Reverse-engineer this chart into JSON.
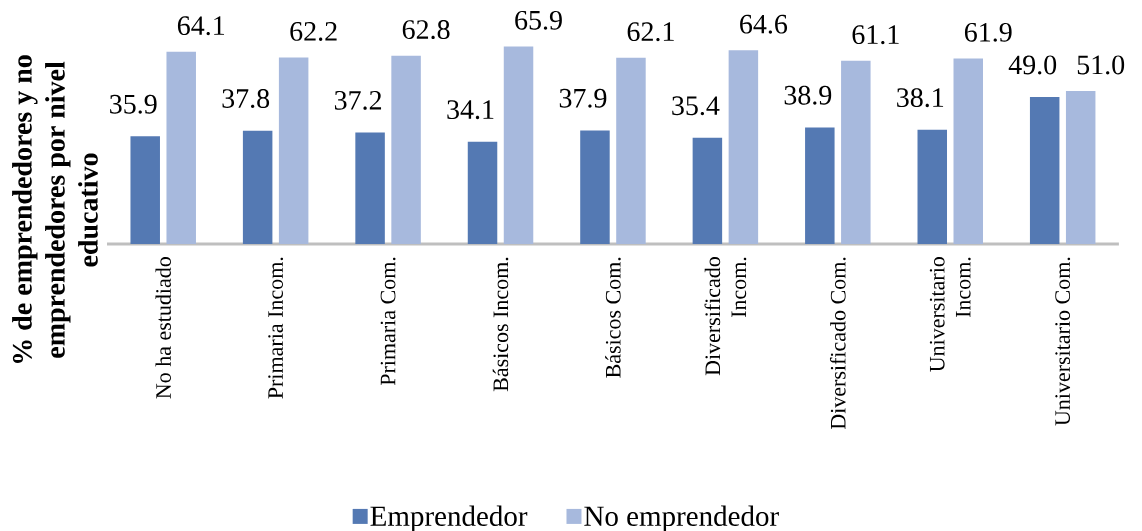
{
  "chart_data": {
    "type": "bar",
    "ylabel": "% de emprendedores y no emprendedores por nivel educativo",
    "categories": [
      "No ha estudiado",
      "Primaria Incom.",
      "Primaria Com.",
      "Básicos Incom.",
      "Básicos Com.",
      "Diversificado Incom.",
      "Diversificado Com.",
      "Universitario Incom.",
      "Universitario Com."
    ],
    "series": [
      {
        "name": "Emprendedor",
        "color": "#5479b3",
        "values": [
          35.9,
          37.8,
          37.2,
          34.1,
          37.9,
          35.4,
          38.9,
          38.1,
          49.0
        ],
        "value_labels": [
          "35.9",
          "37.8",
          "37.2",
          "34.1",
          "37.9",
          "35.4",
          "38.9",
          "38.1",
          "49.0"
        ]
      },
      {
        "name": "No emprendedor",
        "color": "#a7b9dd",
        "values": [
          64.1,
          62.2,
          62.8,
          65.9,
          62.1,
          64.6,
          61.1,
          61.9,
          51.0
        ],
        "value_labels": [
          "64.1",
          "62.2",
          "62.8",
          "65.9",
          "62.1",
          "64.6",
          "61.1",
          "61.9",
          "51.0"
        ]
      }
    ],
    "legend": "bottom",
    "tick_labels": "x"
  }
}
